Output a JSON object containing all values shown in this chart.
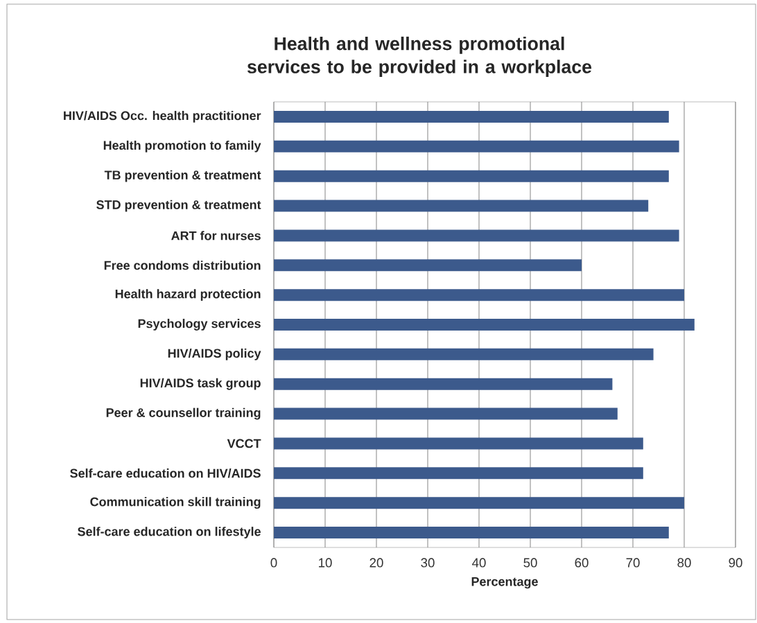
{
  "chart_data": {
    "type": "bar",
    "orientation": "horizontal",
    "title": "Health and wellness promotional services to be provided in a workplace",
    "xlabel": "Percentage",
    "categories": [
      "HIV/AIDS Occ. health practitioner",
      "Health promotion to family",
      "TB prevention & treatment",
      "STD prevention & treatment",
      "ART for nurses",
      "Free condoms distribution",
      "Health hazard protection",
      "Psychology services",
      "HIV/AIDS policy",
      "HIV/AIDS task group",
      "Peer & counsellor training",
      "VCCT",
      "Self-care education on HIV/AIDS",
      "Communication skill training",
      "Self-care education on lifestyle"
    ],
    "values": [
      77,
      79,
      77,
      73,
      79,
      60,
      80,
      82,
      74,
      66,
      67,
      72,
      72,
      80,
      77
    ],
    "color": "#3c5a8c",
    "xlim": [
      0,
      90
    ],
    "xticks": [
      0,
      10,
      20,
      30,
      40,
      50,
      60,
      70,
      80,
      90
    ],
    "grid": "x"
  }
}
